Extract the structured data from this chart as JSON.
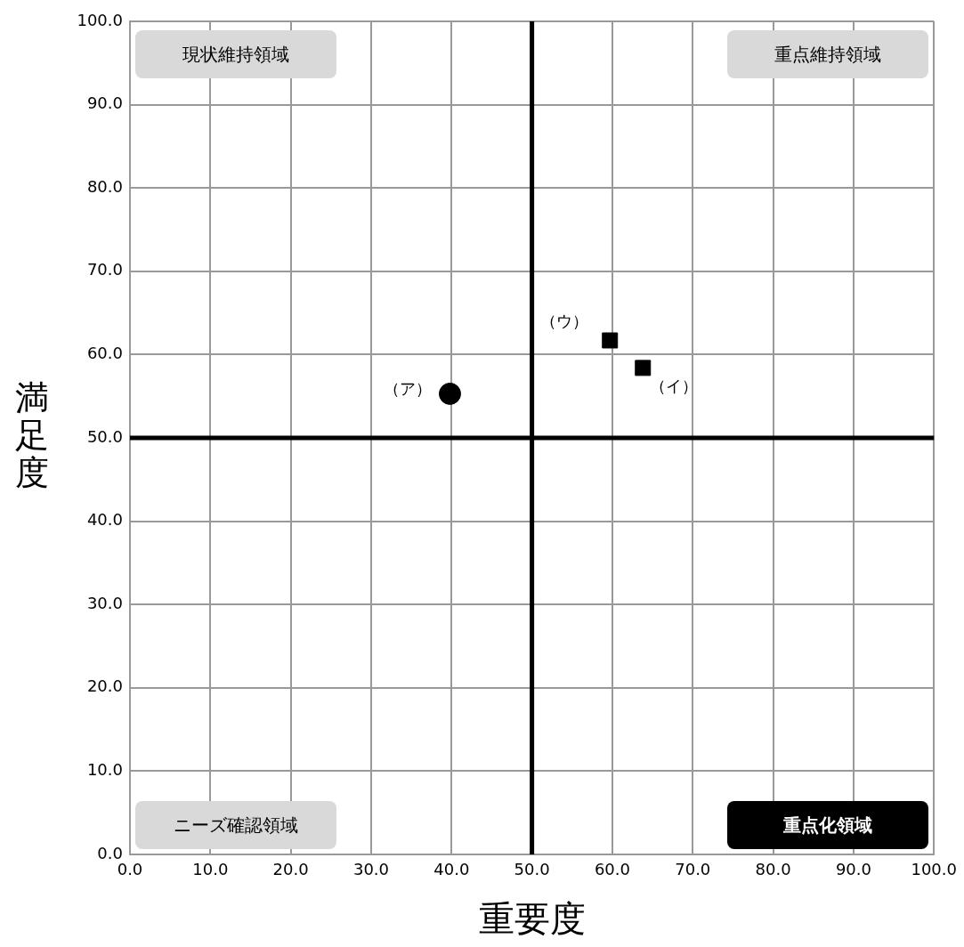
{
  "chart_data": {
    "type": "scatter",
    "xlabel": "重要度",
    "ylabel": "満足度",
    "xlim": [
      0,
      100
    ],
    "ylim": [
      0,
      100
    ],
    "xticks": [
      {
        "value": 0,
        "label": "0.0"
      },
      {
        "value": 10,
        "label": "10.0"
      },
      {
        "value": 20,
        "label": "20.0"
      },
      {
        "value": 30,
        "label": "30.0"
      },
      {
        "value": 40,
        "label": "40.0"
      },
      {
        "value": 50,
        "label": "50.0"
      },
      {
        "value": 60,
        "label": "60.0"
      },
      {
        "value": 70,
        "label": "70.0"
      },
      {
        "value": 80,
        "label": "80.0"
      },
      {
        "value": 90,
        "label": "90.0"
      },
      {
        "value": 100,
        "label": "100.0"
      }
    ],
    "yticks": [
      {
        "value": 0,
        "label": "0.0"
      },
      {
        "value": 10,
        "label": "10.0"
      },
      {
        "value": 20,
        "label": "20.0"
      },
      {
        "value": 30,
        "label": "30.0"
      },
      {
        "value": 40,
        "label": "40.0"
      },
      {
        "value": 50,
        "label": "50.0"
      },
      {
        "value": 60,
        "label": "60.0"
      },
      {
        "value": 70,
        "label": "70.0"
      },
      {
        "value": 80,
        "label": "80.0"
      },
      {
        "value": 90,
        "label": "90.0"
      },
      {
        "value": 100,
        "label": "100.0"
      }
    ],
    "grid": true,
    "legend": false,
    "series": [
      {
        "name": "（ア）",
        "color": "#000000",
        "marker": "circle",
        "x": [
          39.8
        ],
        "values": [
          55.3
        ]
      },
      {
        "name": "（イ）",
        "color": "#000000",
        "marker": "square",
        "x": [
          63.8
        ],
        "values": [
          58.4
        ]
      },
      {
        "name": "（ウ）",
        "color": "#000000",
        "marker": "square",
        "x": [
          59.7
        ],
        "values": [
          61.7
        ]
      },
      {
        "type": "line",
        "color": "#000000",
        "marker": "none",
        "x": [
          50,
          50
        ],
        "values": [
          0,
          100
        ]
      },
      {
        "type": "line",
        "color": "#000000",
        "marker": "none",
        "x": [
          0,
          100
        ],
        "values": [
          50,
          50
        ]
      }
    ],
    "annotations": [
      "現状維持領域",
      "重点維持領域",
      "ニーズ確認領域",
      "重点化領域"
    ]
  }
}
